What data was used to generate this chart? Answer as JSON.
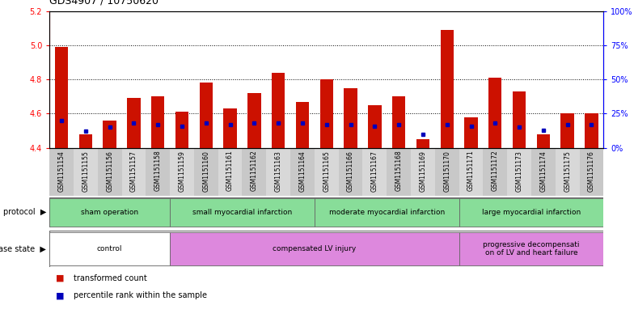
{
  "title": "GDS4907 / 10750620",
  "samples": [
    "GSM1151154",
    "GSM1151155",
    "GSM1151156",
    "GSM1151157",
    "GSM1151158",
    "GSM1151159",
    "GSM1151160",
    "GSM1151161",
    "GSM1151162",
    "GSM1151163",
    "GSM1151164",
    "GSM1151165",
    "GSM1151166",
    "GSM1151167",
    "GSM1151168",
    "GSM1151169",
    "GSM1151170",
    "GSM1151171",
    "GSM1151172",
    "GSM1151173",
    "GSM1151174",
    "GSM1151175",
    "GSM1151176"
  ],
  "red_values": [
    4.99,
    4.48,
    4.56,
    4.69,
    4.7,
    4.61,
    4.78,
    4.63,
    4.72,
    4.84,
    4.67,
    4.8,
    4.75,
    4.65,
    4.7,
    4.45,
    5.09,
    4.58,
    4.81,
    4.73,
    4.48,
    4.6,
    4.6
  ],
  "blue_pct": [
    20,
    12,
    15,
    18,
    17,
    16,
    18,
    17,
    18,
    18,
    18,
    17,
    17,
    16,
    17,
    10,
    17,
    16,
    18,
    15,
    13,
    17,
    17
  ],
  "ylim_left": [
    4.4,
    5.2
  ],
  "ylim_right": [
    0,
    100
  ],
  "yticks_left": [
    4.4,
    4.6,
    4.8,
    5.0,
    5.2
  ],
  "yticks_right": [
    0,
    25,
    50,
    75,
    100
  ],
  "ytick_labels_right": [
    "0%",
    "25%",
    "50%",
    "75%",
    "100%"
  ],
  "grid_values": [
    4.6,
    4.8,
    5.0
  ],
  "bar_color": "#cc1100",
  "dot_color": "#0000bb",
  "base_value": 4.4,
  "protocol_groups": [
    {
      "label": "sham operation",
      "start": 0,
      "end": 4,
      "color": "#88dd99"
    },
    {
      "label": "small myocardial infarction",
      "start": 5,
      "end": 10,
      "color": "#88dd99"
    },
    {
      "label": "moderate myocardial infarction",
      "start": 11,
      "end": 16,
      "color": "#88dd99"
    },
    {
      "label": "large myocardial infarction",
      "start": 17,
      "end": 22,
      "color": "#88dd99"
    }
  ],
  "disease_groups": [
    {
      "label": "control",
      "start": 0,
      "end": 4,
      "color": "#ffffff"
    },
    {
      "label": "compensated LV injury",
      "start": 5,
      "end": 16,
      "color": "#dd88dd"
    },
    {
      "label": "progressive decompensati\non of LV and heart failure",
      "start": 17,
      "end": 22,
      "color": "#dd88dd"
    }
  ],
  "protocol_label": "protocol",
  "disease_label": "disease state",
  "col_colors": [
    "#c8c8c8",
    "#d8d8d8"
  ],
  "legend_items": [
    {
      "label": "transformed count",
      "color": "#cc1100"
    },
    {
      "label": "percentile rank within the sample",
      "color": "#0000bb"
    }
  ],
  "fig_w": 7.84,
  "fig_h": 3.93,
  "dpi": 100
}
